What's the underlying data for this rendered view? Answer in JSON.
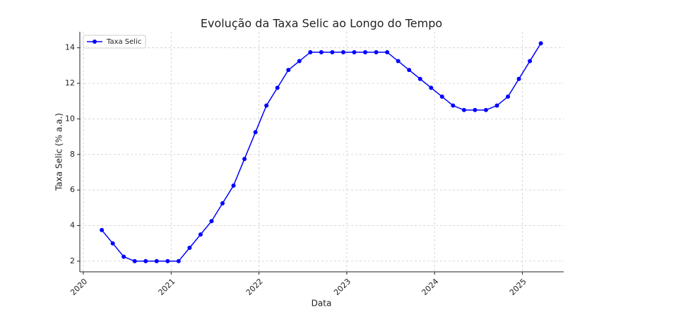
{
  "chart_data": {
    "type": "line",
    "title": "Evolução da Taxa Selic ao Longo do Tempo",
    "x_label": "Data",
    "y_label": "Taxa Selic (% a.a.)",
    "x": [
      2020.21,
      2020.335,
      2020.46,
      2020.585,
      2020.71,
      2020.835,
      2020.96,
      2021.085,
      2021.21,
      2021.335,
      2021.46,
      2021.585,
      2021.71,
      2021.835,
      2021.96,
      2022.085,
      2022.21,
      2022.335,
      2022.46,
      2022.585,
      2022.71,
      2022.835,
      2022.96,
      2023.085,
      2023.21,
      2023.335,
      2023.46,
      2023.585,
      2023.71,
      2023.835,
      2023.96,
      2024.085,
      2024.21,
      2024.335,
      2024.46,
      2024.585,
      2024.71,
      2024.835,
      2024.96,
      2025.085,
      2025.21
    ],
    "series": [
      {
        "name": "Taxa Selic",
        "color": "#0000ff",
        "values": [
          3.75,
          3.0,
          2.25,
          2.0,
          2.0,
          2.0,
          2.0,
          2.0,
          2.75,
          3.5,
          4.25,
          5.25,
          6.25,
          7.75,
          9.25,
          10.75,
          11.75,
          12.75,
          13.25,
          13.75,
          13.75,
          13.75,
          13.75,
          13.75,
          13.75,
          13.75,
          13.75,
          13.25,
          12.75,
          12.25,
          11.75,
          11.25,
          10.75,
          10.5,
          10.5,
          10.5,
          10.75,
          11.25,
          12.25,
          13.25,
          14.25
        ]
      }
    ],
    "xlim": [
      2019.96,
      2025.47
    ],
    "xticks": [
      2020,
      2021,
      2022,
      2023,
      2024,
      2025
    ],
    "ylim": [
      1.4,
      14.9
    ],
    "yticks": [
      2,
      4,
      6,
      8,
      10,
      12,
      14
    ],
    "grid": true,
    "legend": "upper left"
  }
}
